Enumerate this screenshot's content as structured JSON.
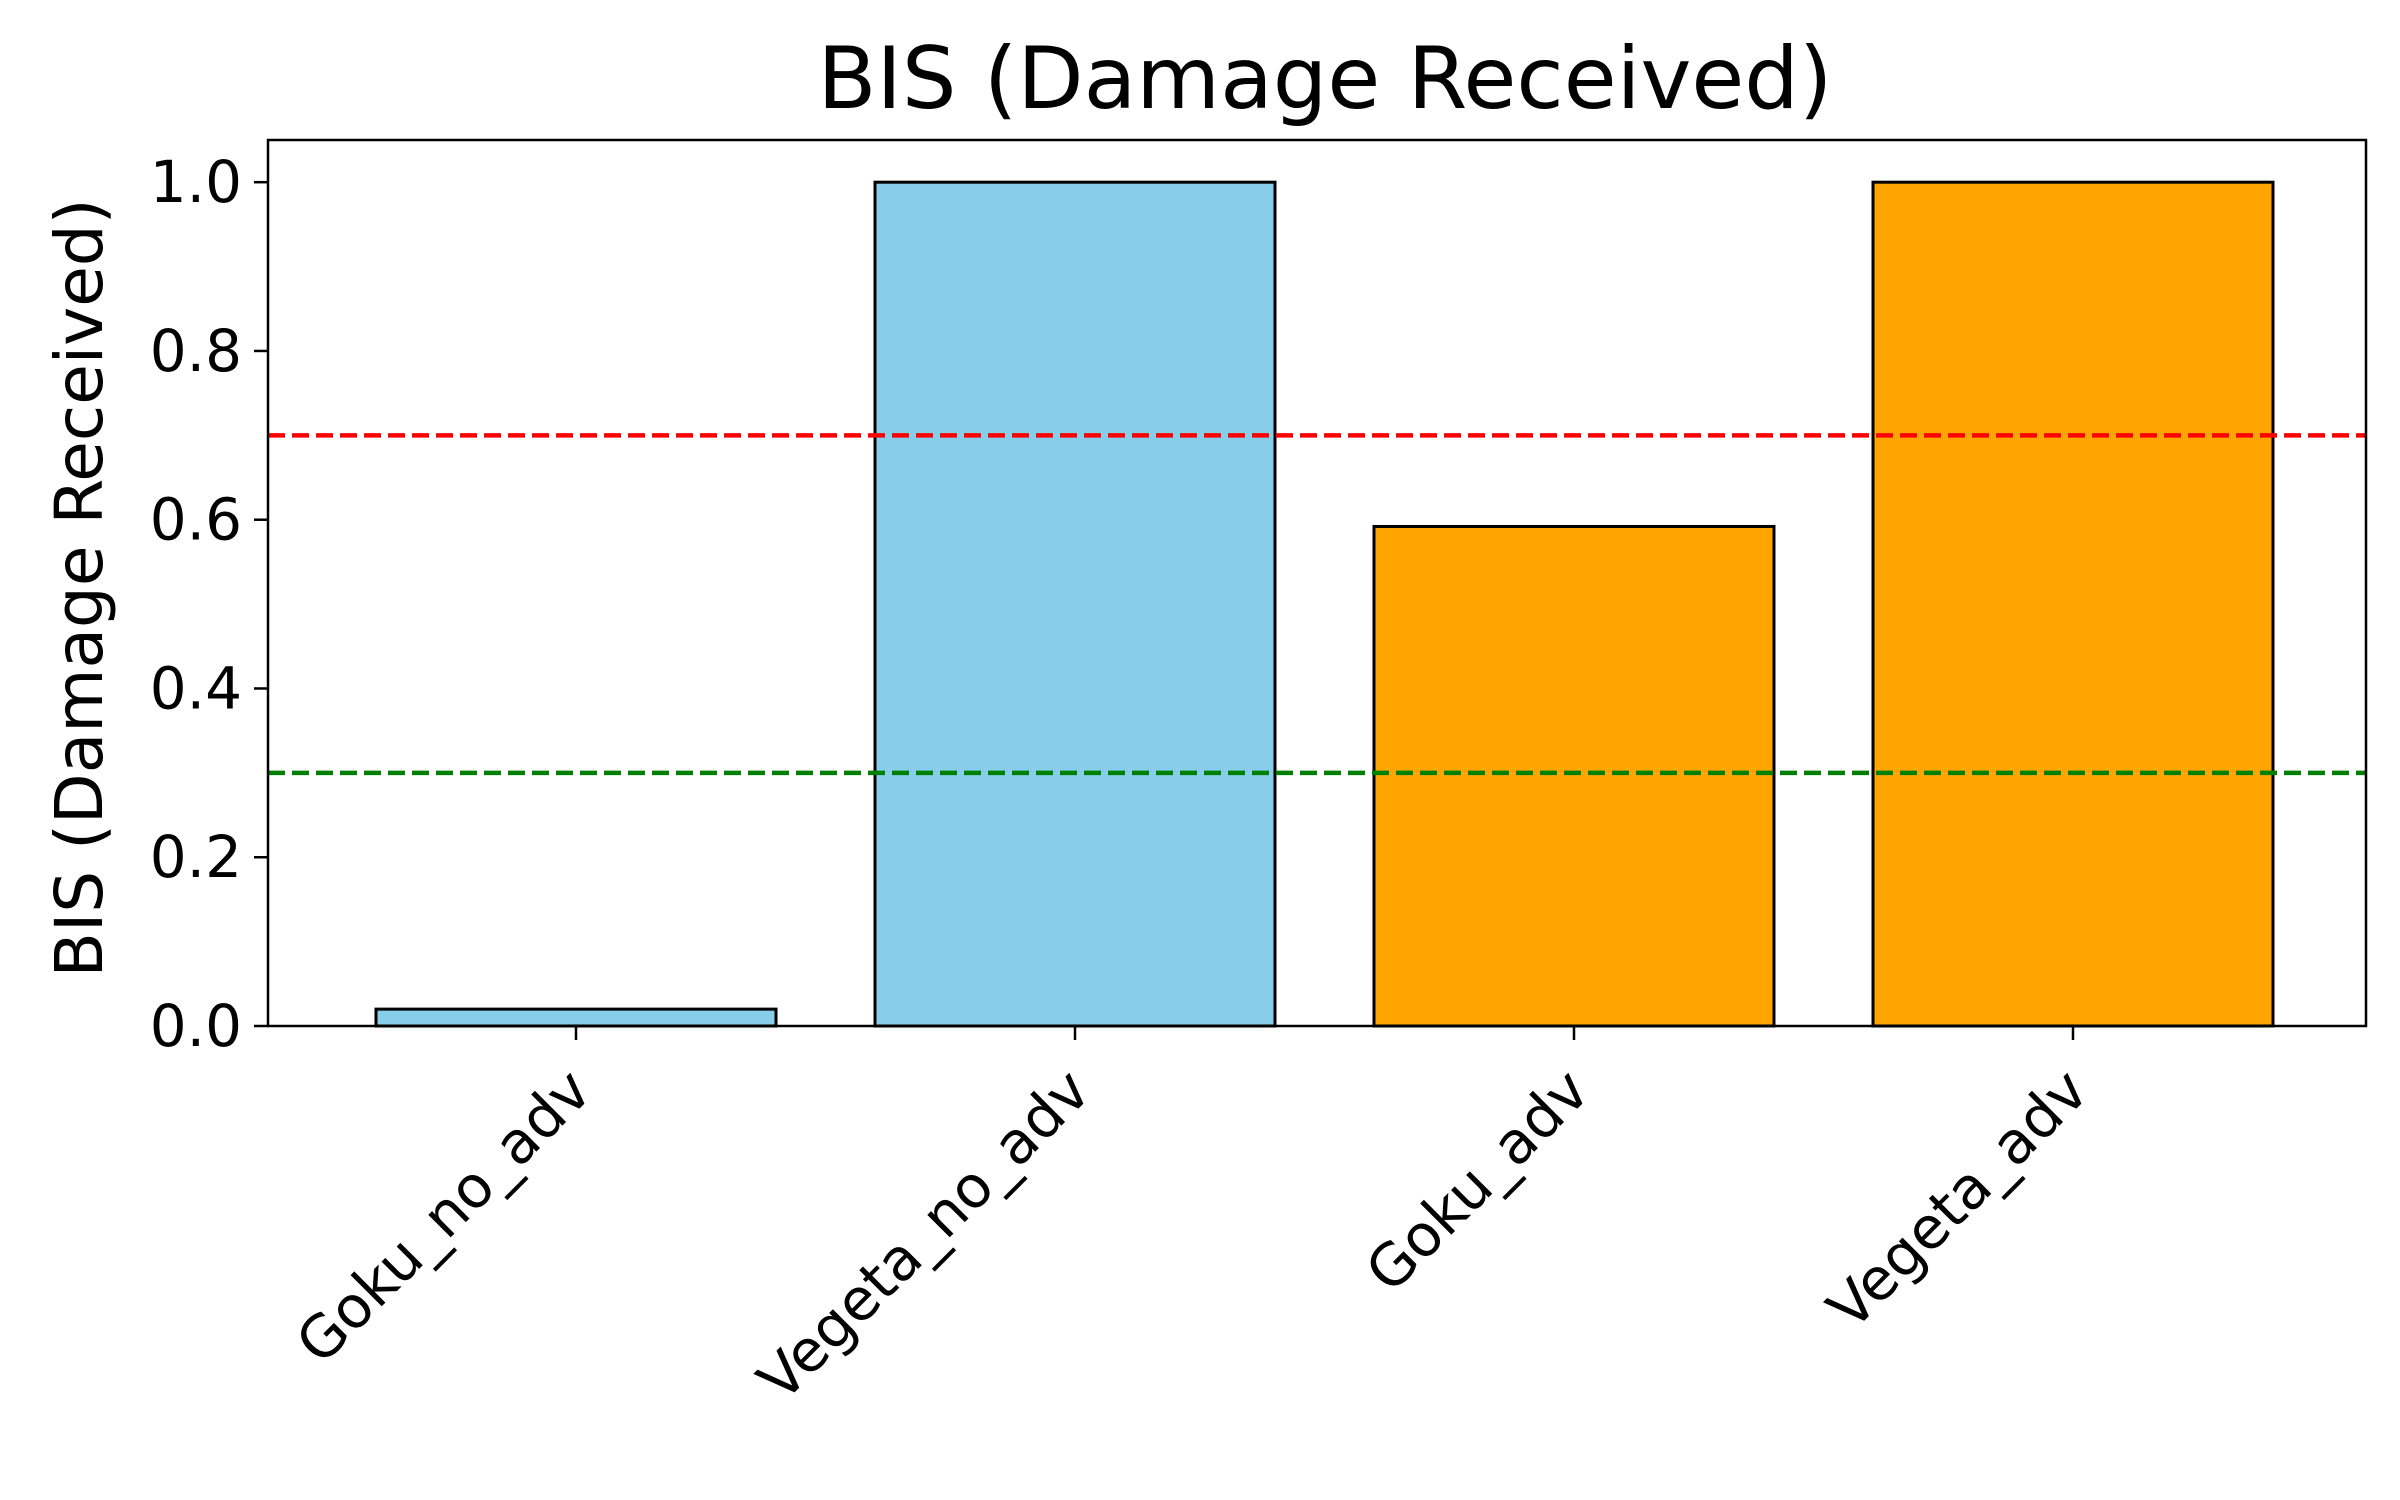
{
  "chart_data": {
    "type": "bar",
    "title": "BIS (Damage Received)",
    "xlabel": "",
    "ylabel": "BIS (Damage Received)",
    "categories": [
      "Goku_no_adv",
      "Vegeta_no_adv",
      "Goku_adv",
      "Vegeta_adv"
    ],
    "values": [
      0.02,
      1.0,
      0.592,
      1.0
    ],
    "bar_colors": [
      "#87CEEB",
      "#87CEEB",
      "#FFA500",
      "#FFA500"
    ],
    "bar_edge_color": "#000000",
    "ylim": [
      0,
      1.05
    ],
    "yticks": [
      0.0,
      0.2,
      0.4,
      0.6,
      0.8,
      1.0
    ],
    "ytick_labels": [
      "0.0",
      "0.2",
      "0.4",
      "0.6",
      "0.8",
      "1.0"
    ],
    "reference_lines": [
      {
        "y": 0.7,
        "color": "#FF0000",
        "style": "dashed"
      },
      {
        "y": 0.3,
        "color": "#008000",
        "style": "dashed"
      }
    ],
    "grid": false,
    "legend": "none"
  }
}
